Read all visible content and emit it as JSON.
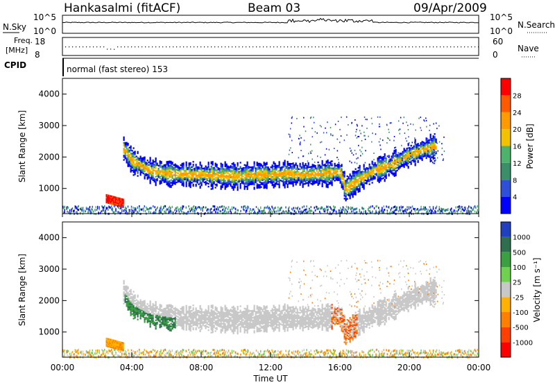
{
  "header": {
    "station": "Hankasalmi (fitACF)",
    "beam": "Beam 03",
    "date": "09/Apr/2009"
  },
  "noise_panel": {
    "left_label": "N.Sky",
    "right_label": "N.Search",
    "left_top": "10^5",
    "left_bottom": "10^0",
    "right_top": "10^5",
    "right_bottom": "10^0"
  },
  "freq_panel": {
    "label_line1": "Freq.",
    "label_line2": "[MHz]",
    "left_top": "18",
    "left_bottom": "8",
    "right_top": "60",
    "right_bottom": "0",
    "right_label": "Nave"
  },
  "cpid_panel": {
    "label": "CPID",
    "text": "normal (fast stereo) 153"
  },
  "colors": {
    "power_scale": [
      "#0000ff",
      "#2f4fd8",
      "#3a8f6a",
      "#4db26c",
      "#f2c200",
      "#ff9a00",
      "#ff5a00",
      "#ff0000"
    ],
    "velocity_scale": [
      "#2040c0",
      "#2f6f50",
      "#3aa040",
      "#70d050",
      "#c8c8c8",
      "#ffb000",
      "#ff8000",
      "#ff4000",
      "#ff0000"
    ]
  },
  "chart_data": [
    {
      "type": "heatmap",
      "name": "power",
      "ylabel": "Slant Range [km]",
      "ylim": [
        200,
        4500
      ],
      "yticks": [
        "1000",
        "2000",
        "3000",
        "4000"
      ],
      "xlim": [
        0,
        24
      ],
      "colorbar_label": "Power [dB]",
      "colorbar_ticks": [
        "4",
        "8",
        "12",
        "16",
        "20",
        "24",
        "28"
      ],
      "scatter_echo_band": {
        "times_hr": [
          3.5,
          4,
          5,
          6,
          7,
          8,
          9,
          10,
          11,
          12,
          13,
          14,
          15,
          16,
          16.3,
          17,
          18,
          19,
          20,
          21,
          21.5
        ],
        "range_km": [
          2300,
          1900,
          1600,
          1500,
          1480,
          1460,
          1450,
          1420,
          1450,
          1460,
          1500,
          1470,
          1500,
          1550,
          1000,
          1300,
          1600,
          1800,
          2100,
          2300,
          2350
        ]
      },
      "ground_echo_segment": {
        "times_hr": [
          2.5,
          3,
          3.5
        ],
        "range_km": [
          700,
          600,
          550
        ],
        "power_db": 30
      }
    },
    {
      "type": "heatmap",
      "name": "velocity",
      "ylabel": "Slant Range [km]",
      "ylim": [
        200,
        4500
      ],
      "yticks": [
        "1000",
        "2000",
        "3000",
        "4000"
      ],
      "xlabel": "Time UT",
      "xticks": [
        "00:00",
        "04:00",
        "08:00",
        "12:00",
        "16:00",
        "20:00",
        "00:00"
      ],
      "xlim": [
        0,
        24
      ],
      "colorbar_label": "Velocity [m s⁻¹]",
      "colorbar_ticks": [
        "1000",
        "500",
        "100",
        "25",
        "-25",
        "-100",
        "-500",
        "-1000"
      ]
    }
  ]
}
